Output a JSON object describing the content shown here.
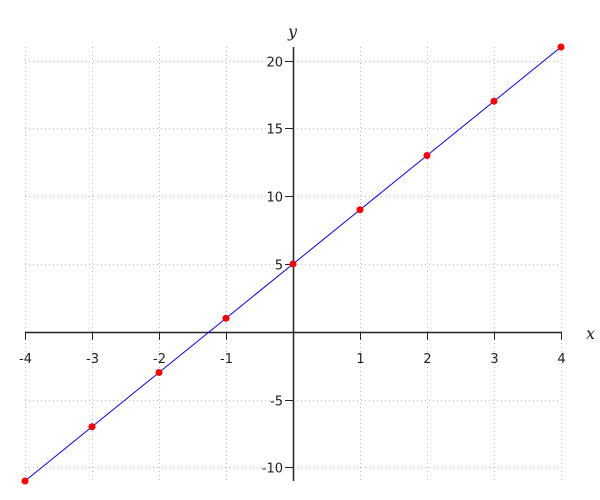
{
  "chart_data": {
    "type": "line",
    "title": "",
    "xlabel": "x",
    "ylabel": "y",
    "xlim": [
      -4,
      4
    ],
    "ylim": [
      -11,
      21
    ],
    "grid": true,
    "x_ticks": [
      -4,
      -3,
      -2,
      -1,
      1,
      2,
      3,
      4
    ],
    "y_ticks": [
      -10,
      -5,
      5,
      10,
      15,
      20
    ],
    "series": [
      {
        "x": [
          -4,
          -3,
          -2,
          -1,
          0,
          1,
          2,
          3,
          4
        ],
        "y": [
          -11,
          -7,
          -3,
          1,
          5,
          9,
          13,
          17,
          21
        ],
        "line_color": "#0000ff",
        "marker_color": "#ff0000"
      }
    ]
  }
}
